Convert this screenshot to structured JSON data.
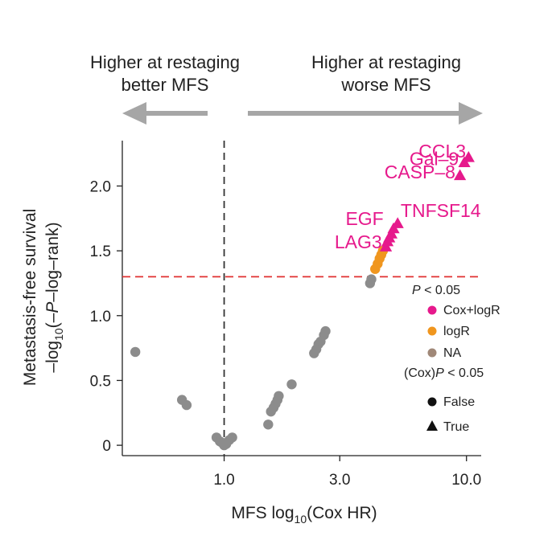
{
  "chart_data": {
    "type": "scatter",
    "x_scale": "log10",
    "xlim": [
      0.38,
      11.5
    ],
    "ylim": [
      -0.08,
      2.35
    ],
    "xticks": [
      1.0,
      3.0,
      10.0
    ],
    "xtick_labels": [
      "1.0",
      "3.0",
      "10.0"
    ],
    "yticks": [
      0,
      0.5,
      1.0,
      1.5,
      2.0
    ],
    "ytick_labels": [
      "0",
      "0.5",
      "1.0",
      "1.5",
      "2.0"
    ],
    "xlabel_main": "MFS log",
    "xlabel_sub": "10",
    "xlabel_tail": "(Cox HR)",
    "ylabel_line1": "Metastasis-free survival",
    "ylabel_line2_pre": "–log",
    "ylabel_line2_sub": "10",
    "ylabel_line2_mid1": "(–",
    "ylabel_line2_italic": "P",
    "ylabel_line2_post": "–log–rank)",
    "vline_x": 1.0,
    "hline_y": 1.3,
    "direction_left_line1": "Higher at restaging",
    "direction_left_line2": "better MFS",
    "direction_right_line1": "Higher at restaging",
    "direction_right_line2": "worse MFS",
    "colors": {
      "cox_logr": "#e6198c",
      "logr": "#f0961e",
      "na": "#8c8c8c",
      "dashed_v": "#333333",
      "dashed_h": "#e03030",
      "arrow": "#a6a6a6"
    },
    "legend": {
      "title_italic": "P",
      "title_rest": " < 0.05",
      "items": [
        "Cox+logR",
        "logR",
        "NA"
      ],
      "shape_title_pre": "(Cox)",
      "shape_title_italic": "P",
      "shape_title_post": " < 0.05",
      "shape_items": [
        "False",
        "True"
      ]
    },
    "series": [
      {
        "name": "NA-False",
        "category": "na",
        "shape": "circle",
        "points": [
          [
            0.43,
            0.72
          ],
          [
            0.67,
            0.35
          ],
          [
            0.7,
            0.31
          ],
          [
            0.93,
            0.06
          ],
          [
            0.96,
            0.03
          ],
          [
            0.98,
            0.02
          ],
          [
            1.0,
            0.0
          ],
          [
            1.02,
            0.01
          ],
          [
            1.05,
            0.04
          ],
          [
            1.08,
            0.06
          ],
          [
            1.52,
            0.16
          ],
          [
            1.56,
            0.26
          ],
          [
            1.6,
            0.29
          ],
          [
            1.63,
            0.32
          ],
          [
            1.66,
            0.35
          ],
          [
            1.68,
            0.38
          ],
          [
            1.9,
            0.47
          ],
          [
            2.35,
            0.71
          ],
          [
            2.4,
            0.74
          ],
          [
            2.45,
            0.78
          ],
          [
            2.5,
            0.8
          ],
          [
            2.58,
            0.85
          ],
          [
            2.62,
            0.88
          ],
          [
            4.0,
            1.25
          ],
          [
            4.05,
            1.28
          ]
        ]
      },
      {
        "name": "logR-False",
        "category": "logr",
        "shape": "circle",
        "points": [
          [
            4.2,
            1.36
          ],
          [
            4.3,
            1.4
          ],
          [
            4.38,
            1.44
          ],
          [
            4.45,
            1.47
          ],
          [
            4.52,
            1.5
          ]
        ]
      },
      {
        "name": "Cox+logR-True",
        "category": "cox_logr",
        "shape": "triangle",
        "points": [
          [
            4.65,
            1.53
          ],
          [
            4.72,
            1.57
          ],
          [
            4.8,
            1.6
          ],
          [
            4.9,
            1.63
          ],
          [
            5.0,
            1.67
          ],
          [
            5.2,
            1.71
          ],
          [
            9.4,
            2.08
          ],
          [
            9.8,
            2.18
          ],
          [
            10.2,
            2.22
          ]
        ]
      }
    ],
    "annotations": [
      {
        "text": "CCL3",
        "x": 9.95,
        "y": 2.22
      },
      {
        "text": "Gal–9",
        "x": 9.3,
        "y": 2.16
      },
      {
        "text": "CASP–8",
        "x": 9.0,
        "y": 2.06
      },
      {
        "text": "TNFSF14",
        "x": 5.35,
        "y": 1.76
      },
      {
        "text": "EGF",
        "x": 4.55,
        "y": 1.7
      },
      {
        "text": "LAG3",
        "x": 4.48,
        "y": 1.52
      }
    ]
  }
}
